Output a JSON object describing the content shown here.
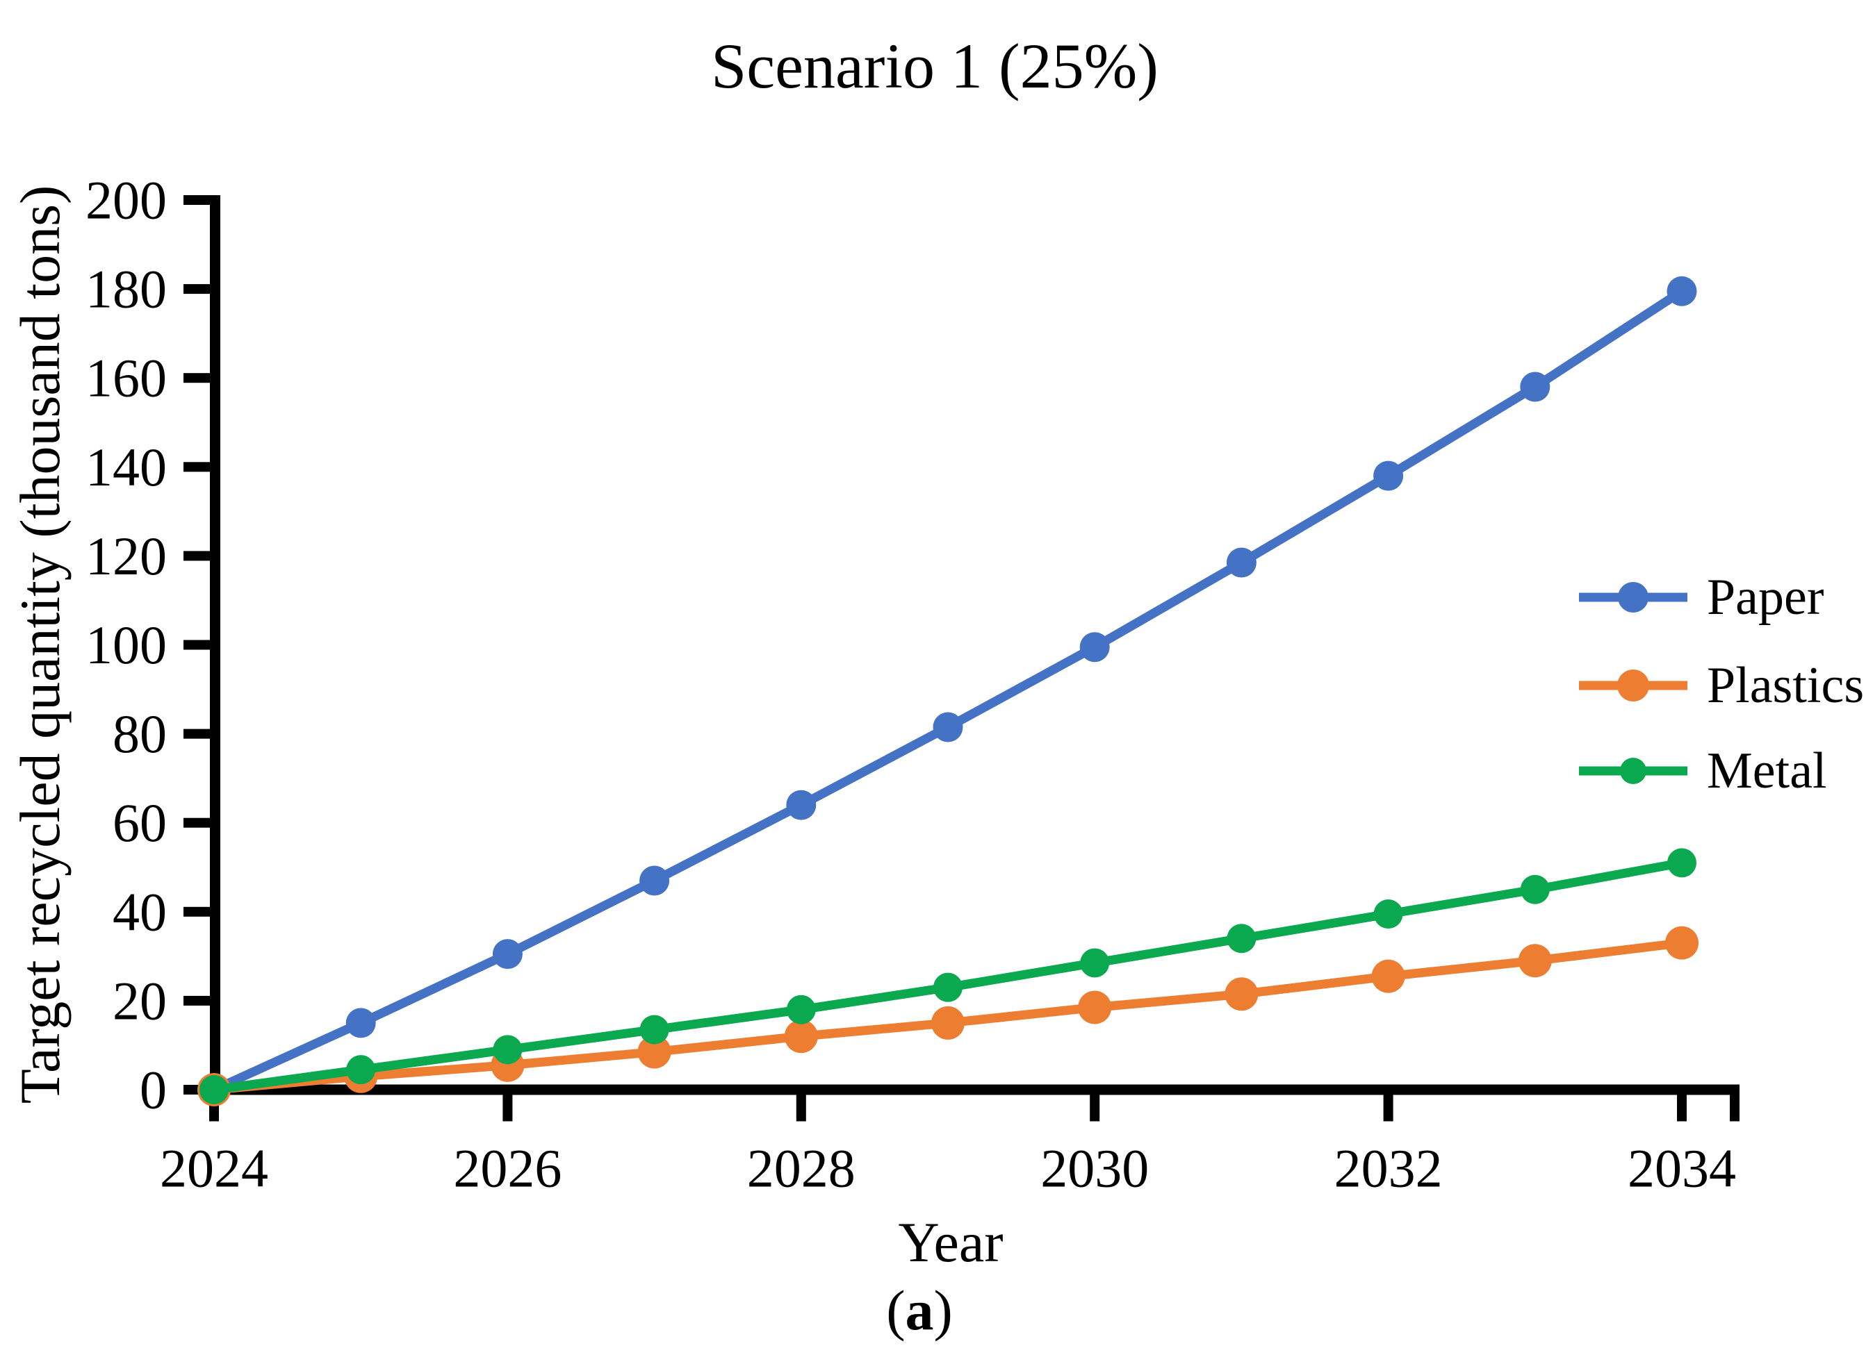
{
  "page": {
    "background": "#FFFFFF"
  },
  "chart_data": {
    "type": "line",
    "title": "Scenario 1 (25%)",
    "xlabel": "Year",
    "ylabel": "Target recycled quantity (thousand tons)",
    "caption": {
      "prefix": "(",
      "letter": "a",
      "suffix": ")"
    },
    "x": [
      2024,
      2025,
      2026,
      2027,
      2028,
      2029,
      2030,
      2031,
      2032,
      2033,
      2034
    ],
    "xticks": [
      2024,
      2026,
      2028,
      2030,
      2032,
      2034
    ],
    "yticks": [
      0,
      20,
      40,
      60,
      80,
      100,
      120,
      140,
      160,
      180,
      200
    ],
    "ylim": [
      0,
      200
    ],
    "xlim_years_shown": [
      2024,
      2034
    ],
    "grid": false,
    "legend_position": "inside-right",
    "axis_color": "#000000",
    "series": [
      {
        "name": "Paper",
        "color": "#4472C4",
        "marker": "circle",
        "values": [
          0,
          15,
          30.5,
          47,
          64,
          81.5,
          99.5,
          118.5,
          138,
          158,
          179.5
        ]
      },
      {
        "name": "Plastics",
        "color": "#ED7D31",
        "marker": "circle",
        "values": [
          0,
          3,
          5.5,
          8.5,
          12,
          15,
          18.5,
          21.5,
          25.5,
          29,
          33
        ]
      },
      {
        "name": "Metal",
        "color": "#0AA84F",
        "marker": "circle",
        "values": [
          0,
          4.5,
          9,
          13.5,
          18,
          23,
          28.5,
          34,
          39.5,
          45,
          51
        ]
      }
    ]
  }
}
